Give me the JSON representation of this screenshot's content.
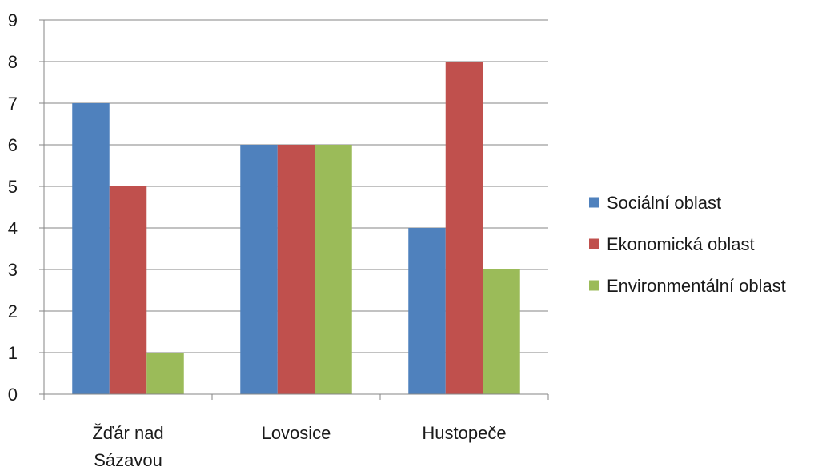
{
  "chart_data": {
    "type": "bar",
    "categories": [
      "Žďár nad Sázavou",
      "Lovosice",
      "Hustopeče"
    ],
    "series": [
      {
        "name": "Sociální oblast",
        "values": [
          7,
          6,
          4
        ],
        "color": "#4F81BD"
      },
      {
        "name": "Ekonomická oblast",
        "values": [
          5,
          6,
          8
        ],
        "color": "#C0504D"
      },
      {
        "name": "Environmentální oblast",
        "values": [
          1,
          6,
          3
        ],
        "color": "#9BBB59"
      }
    ],
    "ylim": [
      0,
      9
    ],
    "yticks": [
      0,
      1,
      2,
      3,
      4,
      5,
      6,
      7,
      8,
      9
    ],
    "grid": true,
    "legend_position": "right",
    "category_label_lines": [
      [
        "Žďár nad",
        "Sázavou"
      ],
      [
        "Lovosice"
      ],
      [
        "Hustopeče"
      ]
    ],
    "gridline_color": "#868686",
    "axis_color": "#868686"
  }
}
